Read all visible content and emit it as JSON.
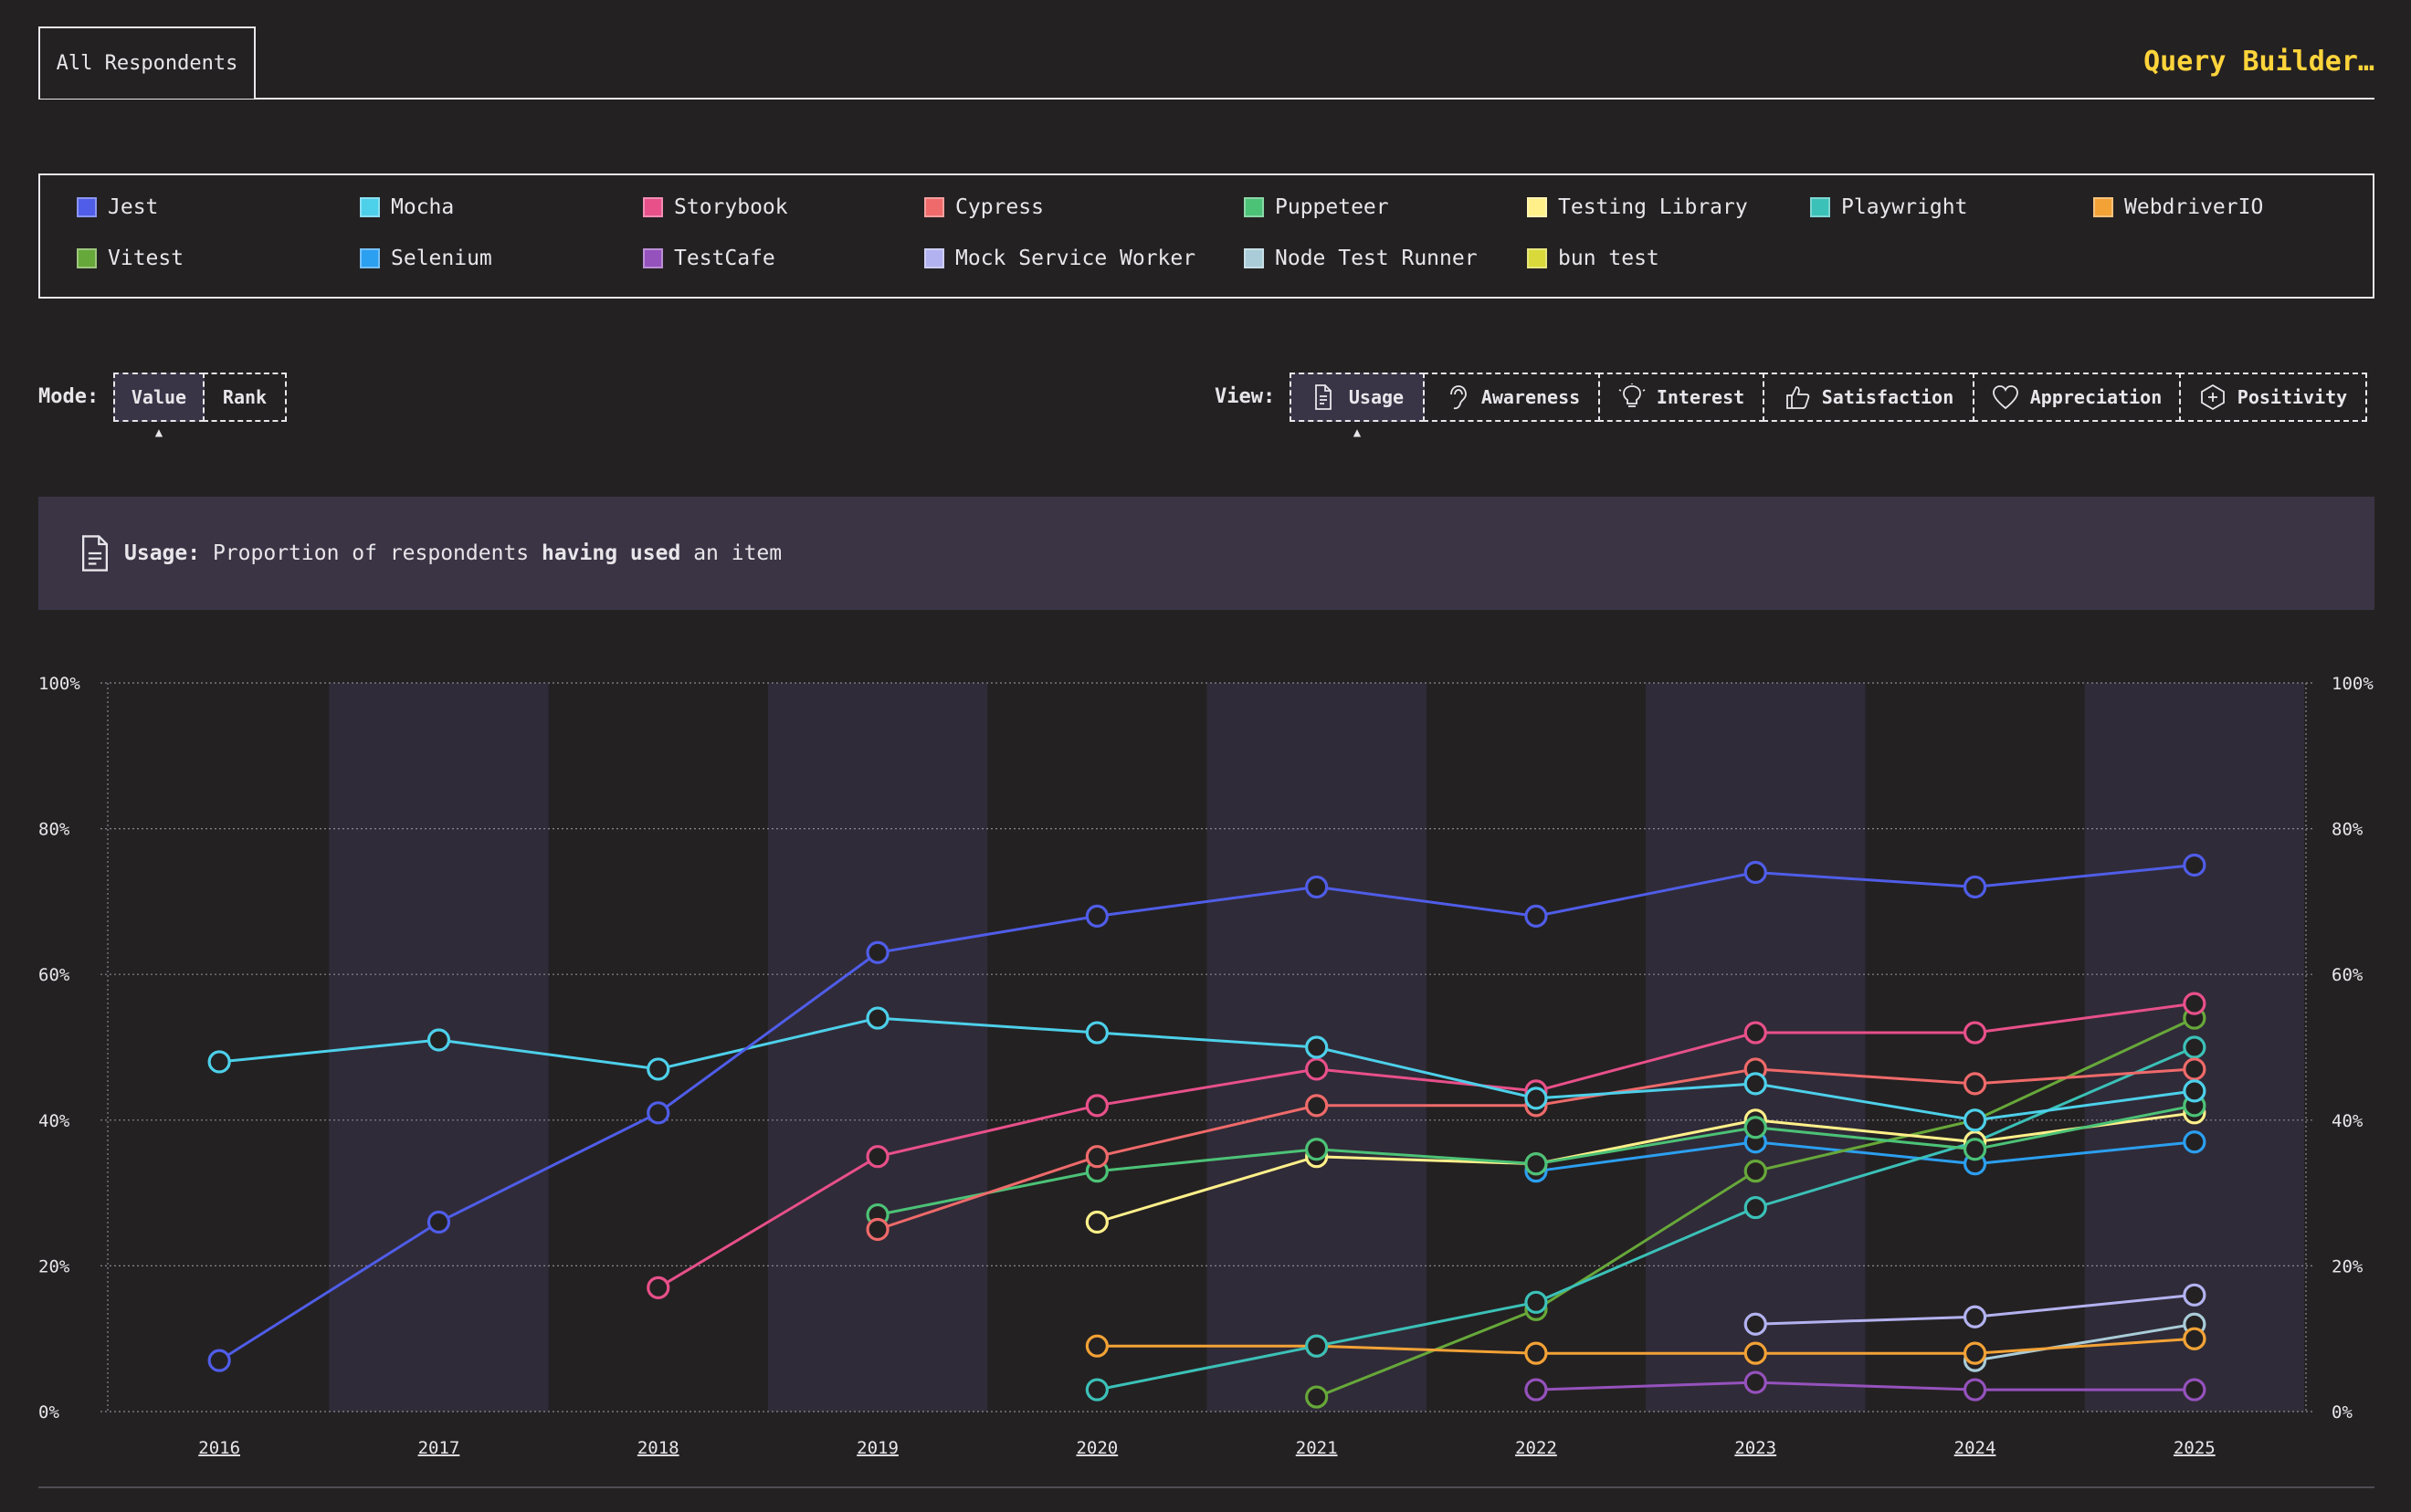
{
  "header": {
    "tab_label": "All Respondents",
    "query_builder": "Query Builder…"
  },
  "legend": [
    {
      "name": "Jest",
      "color": "#4f5de8"
    },
    {
      "name": "Mocha",
      "color": "#4dd0ea"
    },
    {
      "name": "Storybook",
      "color": "#e8508a"
    },
    {
      "name": "Cypress",
      "color": "#ef6a6a"
    },
    {
      "name": "Puppeteer",
      "color": "#4cc277"
    },
    {
      "name": "Testing Library",
      "color": "#fff08a"
    },
    {
      "name": "Playwright",
      "color": "#3bc1b8"
    },
    {
      "name": "WebdriverIO",
      "color": "#f3a236"
    },
    {
      "name": "Vitest",
      "color": "#67a83a"
    },
    {
      "name": "Selenium",
      "color": "#2b9ff0"
    },
    {
      "name": "TestCafe",
      "color": "#9552bd"
    },
    {
      "name": "Mock Service Worker",
      "color": "#b3b2f0"
    },
    {
      "name": "Node Test Runner",
      "color": "#a9ccd8"
    },
    {
      "name": "bun test",
      "color": "#d9d93b"
    }
  ],
  "mode": {
    "label": "Mode:",
    "options": [
      {
        "label": "Value",
        "active": true
      },
      {
        "label": "Rank",
        "active": false
      }
    ]
  },
  "view": {
    "label": "View:",
    "options": [
      {
        "label": "Usage",
        "icon": "document-icon",
        "active": true
      },
      {
        "label": "Awareness",
        "icon": "ear-icon",
        "active": false
      },
      {
        "label": "Interest",
        "icon": "lightbulb-icon",
        "active": false
      },
      {
        "label": "Satisfaction",
        "icon": "thumbs-up-icon",
        "active": false
      },
      {
        "label": "Appreciation",
        "icon": "heart-icon",
        "active": false
      },
      {
        "label": "Positivity",
        "icon": "plus-hexagon-icon",
        "active": false
      }
    ]
  },
  "description": {
    "term": "Usage:",
    "pre": "Proportion of respondents",
    "strong": "having used",
    "post": "an item"
  },
  "chart_data": {
    "type": "line",
    "x": [
      "2016",
      "2017",
      "2018",
      "2019",
      "2020",
      "2021",
      "2022",
      "2023",
      "2024",
      "2025"
    ],
    "ylim": [
      0,
      100
    ],
    "yticks": [
      "0%",
      "20%",
      "40%",
      "60%",
      "80%",
      "100%"
    ],
    "grid": true,
    "series": [
      {
        "name": "Jest",
        "values": [
          7,
          26,
          41,
          63,
          68,
          72,
          68,
          74,
          72,
          75
        ]
      },
      {
        "name": "Mocha",
        "values": [
          48,
          51,
          47,
          54,
          52,
          50,
          43,
          45,
          40,
          44
        ]
      },
      {
        "name": "Storybook",
        "values": [
          null,
          null,
          17,
          35,
          42,
          47,
          44,
          52,
          52,
          56
        ]
      },
      {
        "name": "Cypress",
        "values": [
          null,
          null,
          null,
          25,
          35,
          42,
          42,
          47,
          45,
          47
        ]
      },
      {
        "name": "Puppeteer",
        "values": [
          null,
          null,
          null,
          27,
          33,
          36,
          34,
          39,
          36,
          42
        ]
      },
      {
        "name": "Testing Library",
        "values": [
          null,
          null,
          null,
          null,
          26,
          35,
          34,
          40,
          37,
          41
        ]
      },
      {
        "name": "Playwright",
        "values": [
          null,
          null,
          null,
          null,
          3,
          9,
          15,
          28,
          37,
          50
        ]
      },
      {
        "name": "WebdriverIO",
        "values": [
          null,
          null,
          null,
          null,
          9,
          9,
          8,
          8,
          8,
          10
        ]
      },
      {
        "name": "Vitest",
        "values": [
          null,
          null,
          null,
          null,
          null,
          2,
          14,
          33,
          40,
          54
        ]
      },
      {
        "name": "Selenium",
        "values": [
          null,
          null,
          null,
          null,
          null,
          null,
          33,
          37,
          34,
          37
        ]
      },
      {
        "name": "TestCafe",
        "values": [
          null,
          null,
          null,
          null,
          null,
          null,
          3,
          4,
          3,
          3
        ]
      },
      {
        "name": "Mock Service Worker",
        "values": [
          null,
          null,
          null,
          null,
          null,
          null,
          null,
          12,
          13,
          16
        ]
      },
      {
        "name": "Node Test Runner",
        "values": [
          null,
          null,
          null,
          null,
          null,
          null,
          null,
          null,
          7,
          12
        ]
      },
      {
        "name": "bun test",
        "values": [
          null,
          null,
          null,
          null,
          null,
          null,
          null,
          null,
          null,
          10
        ]
      }
    ]
  }
}
